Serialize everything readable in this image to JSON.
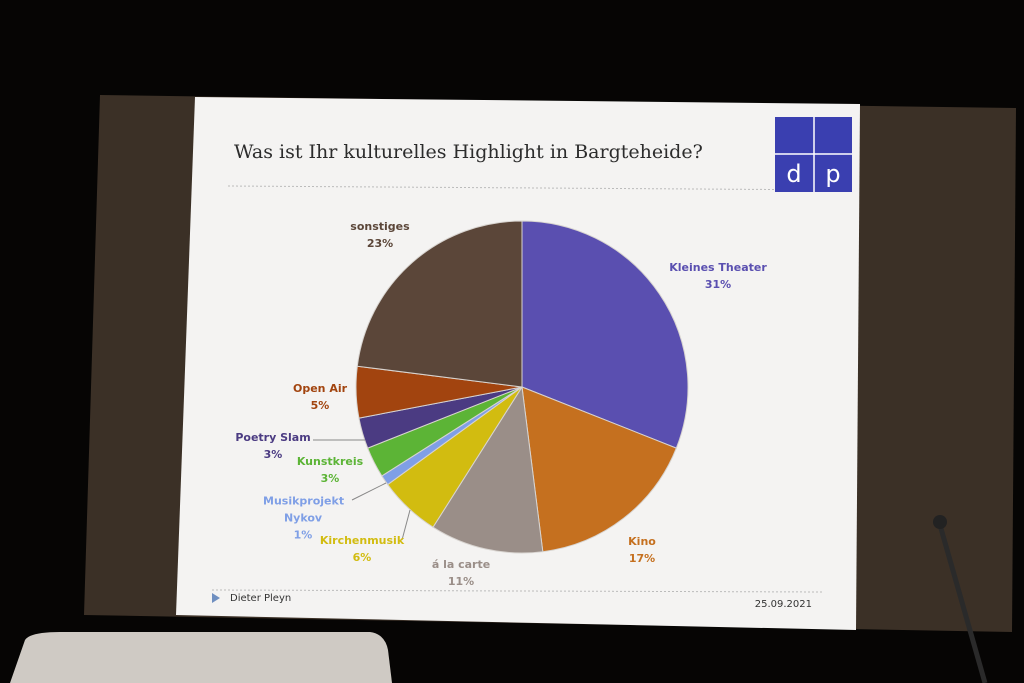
{
  "chart_data": {
    "type": "pie",
    "title": "Was ist Ihr kulturelles Highlight in Bargteheide?",
    "categories": [
      "Kleines Theater",
      "Kino",
      "á la carte",
      "Kirchenmusik",
      "Musikprojekt Nykov",
      "Kunstkreis",
      "Poetry Slam",
      "Open Air",
      "sonstiges"
    ],
    "values": [
      31,
      17,
      11,
      6,
      1,
      3,
      3,
      5,
      23
    ],
    "value_labels": [
      "31%",
      "17%",
      "11%",
      "6%",
      "1%",
      "3%",
      "3%",
      "5%",
      "23%"
    ],
    "colors": [
      "#5a4fb0",
      "#c5701f",
      "#9a8e88",
      "#d2bc10",
      "#7f9fe6",
      "#5cb436",
      "#4b3b82",
      "#a2440f",
      "#5b4639"
    ],
    "annotations": [
      "d",
      "p",
      "Dieter Pleyn",
      "25.09.2021"
    ]
  }
}
